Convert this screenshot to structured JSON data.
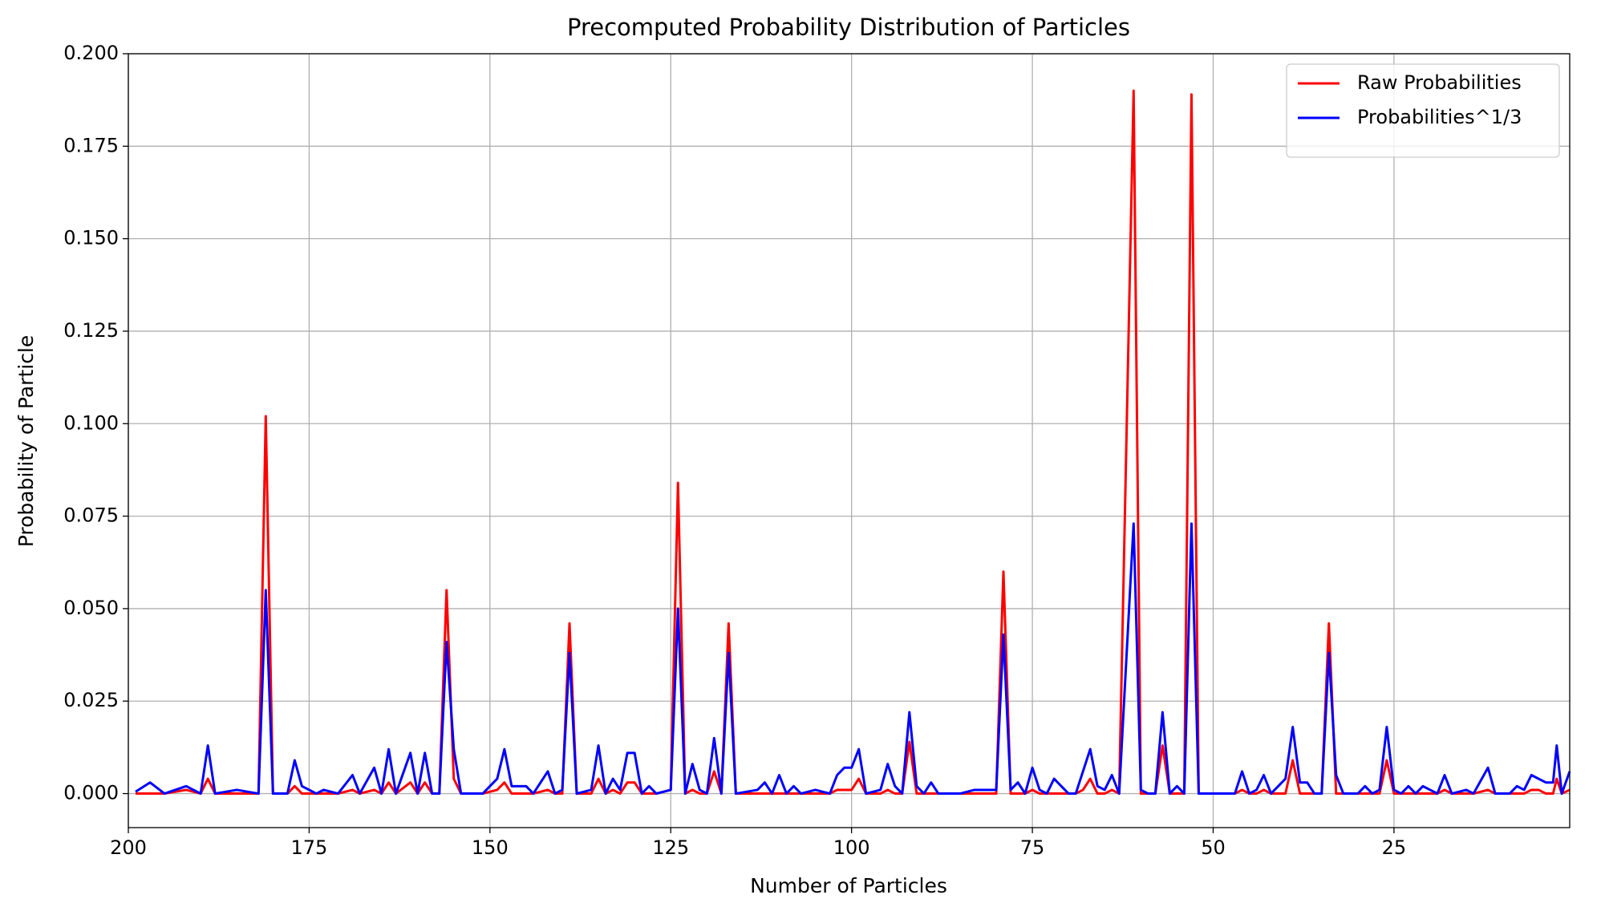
{
  "chart_data": {
    "type": "line",
    "title": "Precomputed Probability Distribution of Particles",
    "x_label": "Number of Particles",
    "y_label": "Probability of Particle",
    "x": [
      199,
      197,
      195,
      192,
      190,
      189,
      188,
      185,
      182,
      181,
      180,
      178,
      177,
      176,
      174,
      173,
      171,
      169,
      168,
      166,
      165,
      164,
      163,
      161,
      160,
      159,
      158,
      157,
      156,
      155,
      154,
      151,
      149,
      148,
      147,
      145,
      144,
      142,
      141,
      140,
      139,
      138,
      136,
      135,
      134,
      133,
      132,
      131,
      130,
      129,
      128,
      127,
      125,
      124,
      123,
      122,
      121,
      120,
      119,
      118,
      117,
      116,
      113,
      112,
      111,
      110,
      109,
      108,
      107,
      105,
      103,
      102,
      101,
      100,
      99,
      98,
      96,
      95,
      94,
      93,
      92,
      91,
      90,
      89,
      88,
      85,
      83,
      81,
      80,
      79,
      78,
      77,
      76,
      75,
      74,
      73,
      72,
      71,
      70,
      69,
      68,
      67,
      66,
      65,
      64,
      63,
      61,
      60,
      59,
      58,
      57,
      56,
      55,
      54,
      53,
      52,
      47,
      46,
      45,
      44,
      43,
      42,
      40,
      39,
      38,
      37,
      36,
      35,
      34,
      33,
      32,
      30,
      29,
      28,
      27,
      26,
      25,
      24,
      23,
      22,
      21,
      20,
      19,
      18,
      17,
      15,
      14,
      12,
      11,
      9,
      8,
      7,
      6,
      5,
      4,
      3,
      2.5,
      1.8,
      0.7
    ],
    "series": [
      {
        "name": "Raw Probabilities",
        "color": "#ff0000",
        "values": [
          0,
          0,
          0,
          0.001,
          0,
          0.004,
          0,
          0,
          0,
          0.102,
          0,
          0,
          0.002,
          0,
          0,
          0,
          0,
          0.001,
          0,
          0.001,
          0,
          0.003,
          0,
          0.003,
          0,
          0.003,
          0,
          0,
          0.055,
          0.004,
          0,
          0,
          0.001,
          0.003,
          0,
          0,
          0,
          0.001,
          0,
          0,
          0.046,
          0,
          0,
          0.004,
          0,
          0.001,
          0,
          0.003,
          0.003,
          0,
          0,
          0,
          0.001,
          0.084,
          0,
          0.001,
          0,
          0,
          0.006,
          0,
          0.046,
          0,
          0,
          0,
          0,
          0,
          0,
          0,
          0,
          0,
          0,
          0.001,
          0.001,
          0.001,
          0.004,
          0,
          0,
          0.001,
          0,
          0,
          0.014,
          0,
          0,
          0,
          0,
          0,
          0,
          0,
          0,
          0.06,
          0,
          0,
          0,
          0.001,
          0,
          0,
          0,
          0,
          0,
          0,
          0.001,
          0.004,
          0,
          0,
          0.001,
          0,
          0.19,
          0,
          0,
          0,
          0.013,
          0,
          0,
          0,
          0.189,
          0,
          0,
          0.001,
          0,
          0,
          0.001,
          0,
          0,
          0.009,
          0,
          0,
          0,
          0,
          0.046,
          0,
          0,
          0,
          0,
          0,
          0,
          0.009,
          0,
          0,
          0,
          0,
          0,
          0,
          0,
          0.001,
          0,
          0,
          0,
          0.001,
          0,
          0,
          0,
          0,
          0.001,
          0.001,
          0,
          0,
          0.004,
          0,
          0.001
        ]
      },
      {
        "name": "Probabilities^1/3",
        "color": "#0000ff",
        "values": [
          0.0005,
          0.003,
          0,
          0.002,
          0,
          0.013,
          0,
          0.001,
          0,
          0.055,
          0,
          0,
          0.009,
          0.002,
          0,
          0.001,
          0,
          0.005,
          0,
          0.007,
          0,
          0.012,
          0,
          0.011,
          0,
          0.011,
          0,
          0,
          0.041,
          0.012,
          0,
          0,
          0.004,
          0.012,
          0.002,
          0.002,
          0,
          0.006,
          0,
          0.001,
          0.038,
          0,
          0.001,
          0.013,
          0,
          0.004,
          0.001,
          0.011,
          0.011,
          0,
          0.002,
          0,
          0.001,
          0.05,
          0,
          0.008,
          0.001,
          0,
          0.015,
          0,
          0.038,
          0,
          0.001,
          0.003,
          0,
          0.005,
          0,
          0.002,
          0,
          0.001,
          0,
          0.005,
          0.007,
          0.007,
          0.012,
          0,
          0.001,
          0.008,
          0.002,
          0,
          0.022,
          0.002,
          0,
          0.003,
          0,
          0,
          0.001,
          0.001,
          0.001,
          0.043,
          0.001,
          0.003,
          0,
          0.007,
          0.001,
          0,
          0.004,
          0.002,
          0,
          0,
          0.006,
          0.012,
          0.002,
          0.001,
          0.005,
          0,
          0.073,
          0.001,
          0,
          0,
          0.022,
          0,
          0.002,
          0,
          0.073,
          0,
          0,
          0.006,
          0,
          0.001,
          0.005,
          0,
          0.004,
          0.018,
          0.003,
          0.003,
          0,
          0,
          0.038,
          0.005,
          0,
          0,
          0.002,
          0,
          0.001,
          0.018,
          0.001,
          0,
          0.002,
          0,
          0.002,
          0.001,
          0,
          0.005,
          0,
          0.001,
          0,
          0.007,
          0,
          0,
          0.002,
          0.001,
          0.005,
          0.004,
          0.003,
          0.003,
          0.013,
          0,
          0.006
        ]
      }
    ],
    "xlim": [
      200,
      0.7
    ],
    "xticks": [
      200,
      175,
      150,
      125,
      100,
      75,
      50,
      25
    ],
    "ylim": [
      -0.0092,
      0.2
    ],
    "yticks": [
      {
        "value": 0,
        "label": "0.000"
      },
      {
        "value": 0.025,
        "label": "0.025"
      },
      {
        "value": 0.05,
        "label": "0.050"
      },
      {
        "value": 0.075,
        "label": "0.075"
      },
      {
        "value": 0.1,
        "label": "0.100"
      },
      {
        "value": 0.125,
        "label": "0.125"
      },
      {
        "value": 0.15,
        "label": "0.150"
      },
      {
        "value": 0.175,
        "label": "0.175"
      },
      {
        "value": 0.2,
        "label": "0.200"
      }
    ],
    "grid": true,
    "legend": "upper right"
  }
}
